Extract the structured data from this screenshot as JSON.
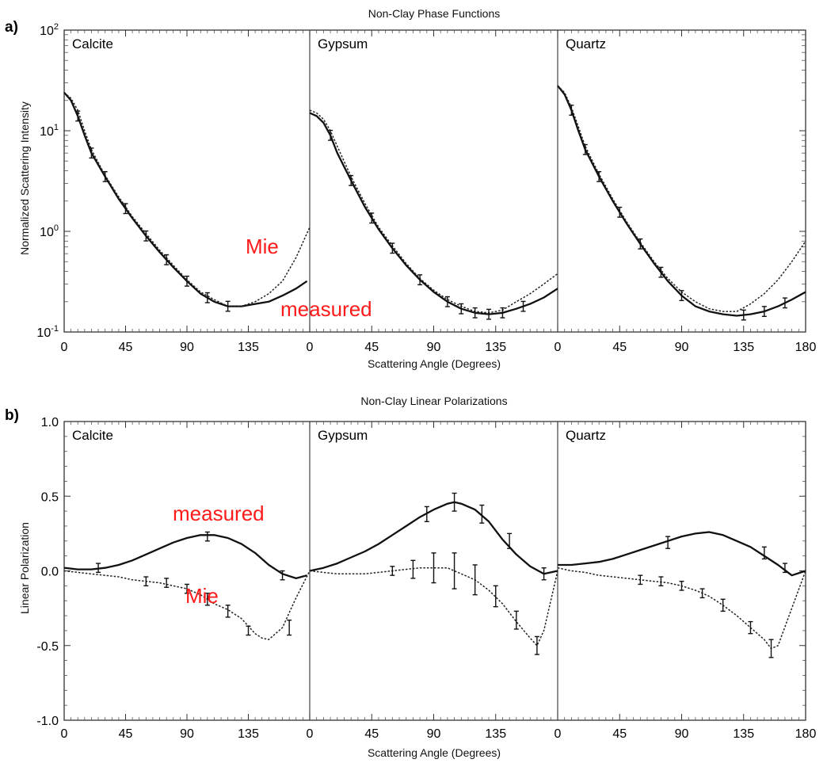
{
  "chart_data": [
    {
      "type": "line",
      "panel_letter": "a)",
      "title": "Non-Clay Phase Functions",
      "xlabel": "Scattering Angle (Degrees)",
      "ylabel": "Normalized Scattering Intensity",
      "yscale": "log",
      "ylim": [
        0.1,
        100
      ],
      "xlim": [
        0,
        180
      ],
      "x_ticks": [
        "0",
        "45",
        "90",
        "135"
      ],
      "x_last_tick": "180",
      "y_ticks": [
        {
          "value": 100,
          "mantissa": "10",
          "exponent": "2"
        },
        {
          "value": 10,
          "mantissa": "10",
          "exponent": "1"
        },
        {
          "value": 1,
          "mantissa": "10",
          "exponent": "0"
        },
        {
          "value": 0.1,
          "mantissa": "10",
          "exponent": "-1"
        }
      ],
      "annotations": {
        "mie": "Mie",
        "measured": "measured"
      },
      "panels": [
        {
          "name": "Calcite",
          "series": [
            {
              "key": "measured",
              "x": [
                0,
                5,
                10,
                15,
                20,
                30,
                40,
                50,
                60,
                70,
                80,
                90,
                100,
                110,
                120,
                130,
                140,
                150,
                160,
                170,
                178
              ],
              "values": [
                24,
                20,
                14,
                9,
                6,
                3.5,
                2.1,
                1.35,
                0.9,
                0.62,
                0.44,
                0.32,
                0.24,
                0.2,
                0.18,
                0.18,
                0.19,
                0.2,
                0.23,
                0.27,
                0.32
              ]
            },
            {
              "key": "mie",
              "x": [
                0,
                5,
                10,
                15,
                20,
                30,
                40,
                50,
                60,
                70,
                80,
                90,
                100,
                110,
                120,
                130,
                140,
                150,
                160,
                170,
                180
              ],
              "values": [
                24,
                21,
                16,
                10,
                6.5,
                3.6,
                2.2,
                1.4,
                0.95,
                0.65,
                0.46,
                0.33,
                0.25,
                0.21,
                0.18,
                0.18,
                0.2,
                0.24,
                0.32,
                0.55,
                1.1
              ]
            }
          ],
          "errorbar_x": [
            10,
            20,
            30,
            45,
            60,
            75,
            90,
            105,
            120
          ]
        },
        {
          "name": "Gypsum",
          "series": [
            {
              "key": "measured",
              "x": [
                0,
                5,
                10,
                15,
                20,
                30,
                40,
                50,
                60,
                70,
                80,
                90,
                100,
                110,
                120,
                130,
                140,
                150,
                160,
                170,
                180
              ],
              "values": [
                15,
                14,
                12,
                9,
                6,
                3.2,
                1.75,
                1.05,
                0.68,
                0.46,
                0.33,
                0.25,
                0.2,
                0.17,
                0.155,
                0.15,
                0.155,
                0.17,
                0.19,
                0.22,
                0.27
              ]
            },
            {
              "key": "mie",
              "x": [
                0,
                5,
                10,
                15,
                20,
                30,
                40,
                50,
                60,
                70,
                80,
                90,
                100,
                110,
                120,
                130,
                140,
                150,
                160,
                170,
                180
              ],
              "values": [
                16,
                15,
                13,
                10,
                7,
                3.5,
                1.9,
                1.1,
                0.72,
                0.48,
                0.34,
                0.26,
                0.21,
                0.18,
                0.16,
                0.155,
                0.165,
                0.2,
                0.24,
                0.3,
                0.38
              ]
            }
          ],
          "errorbar_x": [
            15,
            30,
            45,
            60,
            80,
            100,
            110,
            120,
            130,
            140,
            155
          ]
        },
        {
          "name": "Quartz",
          "series": [
            {
              "key": "measured",
              "x": [
                0,
                5,
                10,
                15,
                20,
                30,
                40,
                50,
                60,
                70,
                80,
                90,
                100,
                110,
                120,
                130,
                140,
                150,
                160,
                170,
                180
              ],
              "values": [
                28,
                23,
                16,
                10,
                6.5,
                3.5,
                2.0,
                1.2,
                0.75,
                0.48,
                0.32,
                0.23,
                0.18,
                0.16,
                0.15,
                0.145,
                0.15,
                0.16,
                0.18,
                0.21,
                0.25
              ]
            },
            {
              "key": "mie",
              "x": [
                0,
                5,
                10,
                15,
                20,
                30,
                40,
                50,
                60,
                70,
                80,
                90,
                100,
                110,
                120,
                130,
                140,
                150,
                160,
                170,
                180
              ],
              "values": [
                28,
                24,
                17,
                11,
                7,
                3.7,
                2.1,
                1.25,
                0.78,
                0.5,
                0.34,
                0.25,
                0.2,
                0.17,
                0.16,
                0.16,
                0.19,
                0.24,
                0.33,
                0.5,
                0.8
              ]
            }
          ],
          "errorbar_x": [
            10,
            20,
            30,
            45,
            60,
            75,
            90,
            135,
            150,
            165
          ]
        }
      ]
    },
    {
      "type": "line",
      "panel_letter": "b)",
      "title": "Non-Clay Linear Polarizations",
      "xlabel": "Scattering Angle (Degrees)",
      "ylabel": "Linear Polarization",
      "yscale": "linear",
      "ylim": [
        -1.0,
        1.0
      ],
      "xlim": [
        0,
        180
      ],
      "x_ticks": [
        "0",
        "45",
        "90",
        "135"
      ],
      "x_last_tick": "180",
      "y_ticks": [
        {
          "value": 1.0,
          "label": "1.0"
        },
        {
          "value": 0.5,
          "label": "0.5"
        },
        {
          "value": 0.0,
          "label": "0.0"
        },
        {
          "value": -0.5,
          "label": "-0.5"
        },
        {
          "value": -1.0,
          "label": "-1.0"
        }
      ],
      "annotations": {
        "mie": "Mie",
        "measured": "measured"
      },
      "panels": [
        {
          "name": "Calcite",
          "series": [
            {
              "key": "measured",
              "x": [
                0,
                10,
                20,
                30,
                40,
                50,
                60,
                70,
                80,
                90,
                100,
                110,
                120,
                130,
                140,
                150,
                160,
                170,
                178
              ],
              "values": [
                0.02,
                0.01,
                0.01,
                0.02,
                0.04,
                0.07,
                0.11,
                0.15,
                0.19,
                0.22,
                0.24,
                0.24,
                0.22,
                0.18,
                0.12,
                0.04,
                -0.02,
                -0.05,
                -0.03
              ],
              "errorbars": [
                {
                  "x": 25,
                  "y": 0.02,
                  "e": 0.03
                },
                {
                  "x": 105,
                  "y": 0.23,
                  "e": 0.03
                },
                {
                  "x": 160,
                  "y": -0.03,
                  "e": 0.03
                }
              ]
            },
            {
              "key": "mie",
              "x": [
                0,
                10,
                20,
                30,
                40,
                50,
                60,
                70,
                80,
                90,
                100,
                110,
                120,
                130,
                140,
                145,
                150,
                160,
                170,
                180
              ],
              "values": [
                0.0,
                -0.01,
                -0.02,
                -0.03,
                -0.04,
                -0.06,
                -0.07,
                -0.08,
                -0.1,
                -0.12,
                -0.16,
                -0.22,
                -0.26,
                -0.32,
                -0.42,
                -0.45,
                -0.46,
                -0.38,
                -0.18,
                0.0
              ],
              "errorbars": [
                {
                  "x": 60,
                  "y": -0.07,
                  "e": 0.03
                },
                {
                  "x": 75,
                  "y": -0.08,
                  "e": 0.03
                },
                {
                  "x": 90,
                  "y": -0.12,
                  "e": 0.03
                },
                {
                  "x": 105,
                  "y": -0.19,
                  "e": 0.04
                },
                {
                  "x": 120,
                  "y": -0.27,
                  "e": 0.04
                },
                {
                  "x": 135,
                  "y": -0.4,
                  "e": 0.03
                },
                {
                  "x": 165,
                  "y": -0.38,
                  "e": 0.05
                }
              ]
            }
          ]
        },
        {
          "name": "Gypsum",
          "series": [
            {
              "key": "measured",
              "x": [
                0,
                10,
                20,
                30,
                40,
                50,
                60,
                70,
                80,
                90,
                100,
                105,
                110,
                120,
                130,
                140,
                150,
                160,
                170,
                180
              ],
              "values": [
                0.0,
                0.02,
                0.05,
                0.09,
                0.13,
                0.18,
                0.24,
                0.3,
                0.36,
                0.41,
                0.45,
                0.46,
                0.45,
                0.41,
                0.33,
                0.21,
                0.11,
                0.03,
                -0.02,
                0.0
              ],
              "errorbars": [
                {
                  "x": 85,
                  "y": 0.38,
                  "e": 0.05
                },
                {
                  "x": 105,
                  "y": 0.46,
                  "e": 0.06
                },
                {
                  "x": 125,
                  "y": 0.38,
                  "e": 0.06
                },
                {
                  "x": 145,
                  "y": 0.2,
                  "e": 0.05
                },
                {
                  "x": 170,
                  "y": -0.02,
                  "e": 0.04
                }
              ]
            },
            {
              "key": "mie",
              "x": [
                0,
                10,
                20,
                30,
                40,
                50,
                60,
                70,
                80,
                90,
                100,
                110,
                120,
                130,
                140,
                150,
                160,
                165,
                170,
                180
              ],
              "values": [
                0.0,
                -0.01,
                -0.02,
                -0.02,
                -0.02,
                -0.01,
                0.0,
                0.01,
                0.02,
                0.02,
                0.02,
                -0.02,
                -0.06,
                -0.13,
                -0.22,
                -0.34,
                -0.45,
                -0.5,
                -0.4,
                0.0
              ],
              "errorbars": [
                {
                  "x": 60,
                  "y": 0.0,
                  "e": 0.03
                },
                {
                  "x": 75,
                  "y": 0.01,
                  "e": 0.06
                },
                {
                  "x": 90,
                  "y": 0.02,
                  "e": 0.1
                },
                {
                  "x": 105,
                  "y": 0.0,
                  "e": 0.12
                },
                {
                  "x": 120,
                  "y": -0.06,
                  "e": 0.1
                },
                {
                  "x": 135,
                  "y": -0.17,
                  "e": 0.07
                },
                {
                  "x": 150,
                  "y": -0.33,
                  "e": 0.06
                },
                {
                  "x": 165,
                  "y": -0.5,
                  "e": 0.06
                }
              ]
            }
          ]
        },
        {
          "name": "Quartz",
          "series": [
            {
              "key": "measured",
              "x": [
                0,
                10,
                20,
                30,
                40,
                50,
                60,
                70,
                80,
                90,
                100,
                110,
                120,
                130,
                140,
                150,
                160,
                170,
                180
              ],
              "values": [
                0.04,
                0.04,
                0.05,
                0.06,
                0.08,
                0.11,
                0.14,
                0.17,
                0.2,
                0.23,
                0.25,
                0.26,
                0.24,
                0.2,
                0.16,
                0.1,
                0.04,
                -0.03,
                0.0
              ],
              "errorbars": [
                {
                  "x": 80,
                  "y": 0.19,
                  "e": 0.04
                },
                {
                  "x": 150,
                  "y": 0.12,
                  "e": 0.04
                },
                {
                  "x": 165,
                  "y": 0.02,
                  "e": 0.03
                }
              ]
            },
            {
              "key": "mie",
              "x": [
                0,
                10,
                20,
                30,
                40,
                50,
                60,
                70,
                80,
                90,
                100,
                110,
                120,
                130,
                140,
                150,
                155,
                160,
                170,
                180
              ],
              "values": [
                0.02,
                0.0,
                -0.01,
                -0.03,
                -0.04,
                -0.05,
                -0.06,
                -0.07,
                -0.08,
                -0.1,
                -0.13,
                -0.17,
                -0.23,
                -0.3,
                -0.38,
                -0.46,
                -0.52,
                -0.5,
                -0.25,
                0.0
              ],
              "errorbars": [
                {
                  "x": 60,
                  "y": -0.06,
                  "e": 0.03
                },
                {
                  "x": 75,
                  "y": -0.07,
                  "e": 0.03
                },
                {
                  "x": 90,
                  "y": -0.1,
                  "e": 0.03
                },
                {
                  "x": 105,
                  "y": -0.15,
                  "e": 0.03
                },
                {
                  "x": 120,
                  "y": -0.23,
                  "e": 0.04
                },
                {
                  "x": 140,
                  "y": -0.38,
                  "e": 0.04
                },
                {
                  "x": 155,
                  "y": -0.52,
                  "e": 0.06
                }
              ]
            }
          ]
        }
      ]
    }
  ]
}
